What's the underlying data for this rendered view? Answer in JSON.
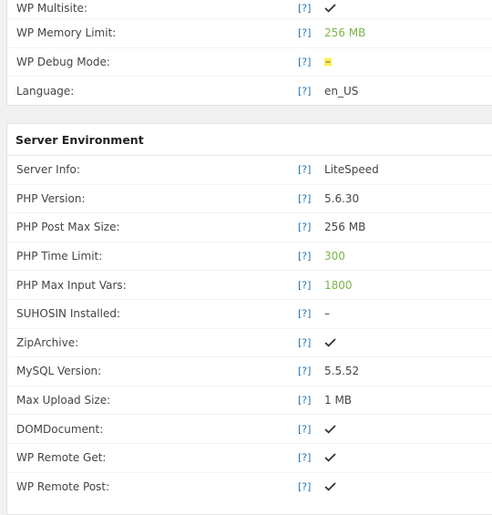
{
  "wordpress_env": {
    "rows": [
      {
        "label": "WP Multisite:",
        "help": "[?]",
        "value": "",
        "status": "check"
      },
      {
        "label": "WP Memory Limit:",
        "help": "[?]",
        "value": "256 MB",
        "status": "good"
      },
      {
        "label": "WP Debug Mode:",
        "help": "[?]",
        "value": "–",
        "status": "highlight"
      },
      {
        "label": "Language:",
        "help": "[?]",
        "value": "en_US",
        "status": "plain"
      }
    ]
  },
  "server_env": {
    "title": "Server Environment",
    "rows": [
      {
        "label": "Server Info:",
        "help": "[?]",
        "value": "LiteSpeed",
        "status": "plain"
      },
      {
        "label": "PHP Version:",
        "help": "[?]",
        "value": "5.6.30",
        "status": "plain"
      },
      {
        "label": "PHP Post Max Size:",
        "help": "[?]",
        "value": "256 MB",
        "status": "plain"
      },
      {
        "label": "PHP Time Limit:",
        "help": "[?]",
        "value": "300",
        "status": "good"
      },
      {
        "label": "PHP Max Input Vars:",
        "help": "[?]",
        "value": "1800",
        "status": "good"
      },
      {
        "label": "SUHOSIN Installed:",
        "help": "[?]",
        "value": "–",
        "status": "plain"
      },
      {
        "label": "ZipArchive:",
        "help": "[?]",
        "value": "",
        "status": "check"
      },
      {
        "label": "MySQL Version:",
        "help": "[?]",
        "value": "5.5.52",
        "status": "plain"
      },
      {
        "label": "Max Upload Size:",
        "help": "[?]",
        "value": "1 MB",
        "status": "plain"
      },
      {
        "label": "DOMDocument:",
        "help": "[?]",
        "value": "",
        "status": "check"
      },
      {
        "label": "WP Remote Get:",
        "help": "[?]",
        "value": "",
        "status": "check"
      },
      {
        "label": "WP Remote Post:",
        "help": "[?]",
        "value": "",
        "status": "check"
      }
    ]
  },
  "colors": {
    "good": "#7ab548",
    "help_link": "#2271b1",
    "highlight": "#fff05a"
  },
  "icons": {
    "check": "checkmark-icon"
  }
}
